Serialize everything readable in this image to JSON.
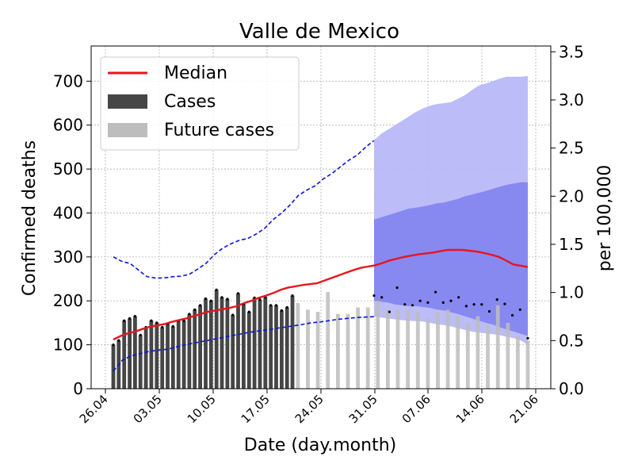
{
  "chart_data": {
    "type": "bar",
    "title": "Valle de Mexico",
    "xlabel": "Date (day.month)",
    "ylabel": "Confirmed deaths",
    "ylabel_right": "per 100,000",
    "ylim": [
      0,
      780
    ],
    "ylim_right": [
      0,
      3.56
    ],
    "yticks": [
      0,
      100,
      200,
      300,
      400,
      500,
      600,
      700
    ],
    "yticks_right": [
      "0.0",
      "0.5",
      "1.0",
      "1.5",
      "2.0",
      "2.5",
      "3.0",
      "3.5"
    ],
    "xticks": [
      "26.04",
      "03.05",
      "10.05",
      "17.05",
      "24.05",
      "31.05",
      "07.06",
      "14.06",
      "21.06"
    ],
    "legend": [
      "Median",
      "Cases",
      "Future cases"
    ],
    "legend_position": "top-left",
    "grid": true,
    "colors": {
      "median": "#e8141e",
      "cases": "#464646",
      "future_cases": "#bdbdbd",
      "band_outer": "#b8b8f8",
      "band_inner": "#8282f0",
      "band_lower": "#c3c3e6",
      "bounds": "#0a14dc"
    },
    "cases": [
      100,
      110,
      155,
      160,
      165,
      122,
      140,
      155,
      150,
      140,
      148,
      142,
      155,
      155,
      170,
      180,
      190,
      205,
      200,
      225,
      208,
      204,
      168,
      217,
      193,
      175,
      207,
      203,
      208,
      190,
      190,
      178,
      185,
      212
    ],
    "future_cases": [
      195,
      180,
      175,
      220,
      170,
      170,
      185,
      185,
      200,
      180,
      180,
      180,
      175,
      160,
      175,
      180,
      165,
      150,
      165,
      145,
      190,
      150,
      120,
      110
    ],
    "median_future_dots": [
      212,
      208,
      175,
      230,
      192,
      190,
      200,
      196,
      220,
      196,
      200,
      208,
      188,
      192,
      192,
      176,
      203,
      193,
      167,
      180,
      115
    ],
    "median": [
      112,
      120,
      126,
      130,
      136,
      141,
      144,
      147,
      152,
      156,
      160,
      165,
      170,
      175,
      178,
      181,
      184,
      188,
      195,
      200,
      207,
      212,
      218,
      225,
      230,
      233,
      236,
      238,
      240,
      246,
      252,
      258,
      264,
      270,
      275,
      278,
      281,
      286,
      292,
      296,
      300,
      303,
      306,
      308,
      310,
      313,
      316,
      316,
      316,
      314,
      312,
      309,
      305,
      300,
      292,
      283,
      280,
      277
    ],
    "upper_dashed": [
      300,
      290,
      285,
      270,
      255,
      252,
      252,
      255,
      256,
      260,
      272,
      285,
      305,
      320,
      330,
      338,
      342,
      352,
      365,
      385,
      400,
      418,
      440,
      452,
      462,
      478,
      490,
      505,
      520,
      532,
      550,
      565
    ],
    "lower_dashed": [
      40,
      65,
      75,
      80,
      85,
      88,
      90,
      95,
      100,
      104,
      108,
      112,
      116,
      120,
      124,
      128,
      131,
      134,
      137,
      140,
      143,
      146,
      150,
      152,
      155,
      158,
      160,
      162,
      163,
      164
    ],
    "band_outer_upper": [
      565,
      580,
      590,
      600,
      610,
      620,
      630,
      638,
      644,
      648,
      650,
      652,
      660,
      668,
      680,
      690,
      695,
      700,
      706,
      710,
      710,
      710,
      712
    ],
    "band_inner_upper": [
      385,
      390,
      395,
      400,
      405,
      410,
      412,
      415,
      418,
      422,
      424,
      428,
      432,
      438,
      442,
      446,
      450,
      455,
      460,
      464,
      467,
      470,
      470
    ],
    "band_inner_lower": [
      200,
      198,
      196,
      192,
      190,
      188,
      188,
      186,
      184,
      180,
      178,
      174,
      170,
      165,
      160,
      155,
      150,
      146,
      140,
      135,
      130,
      125,
      120
    ],
    "band_lower_lower": [
      165,
      162,
      160,
      158,
      156,
      155,
      154,
      153,
      150,
      147,
      145,
      142,
      138,
      134,
      130,
      128,
      126,
      124,
      122,
      118,
      115,
      110,
      100
    ]
  }
}
